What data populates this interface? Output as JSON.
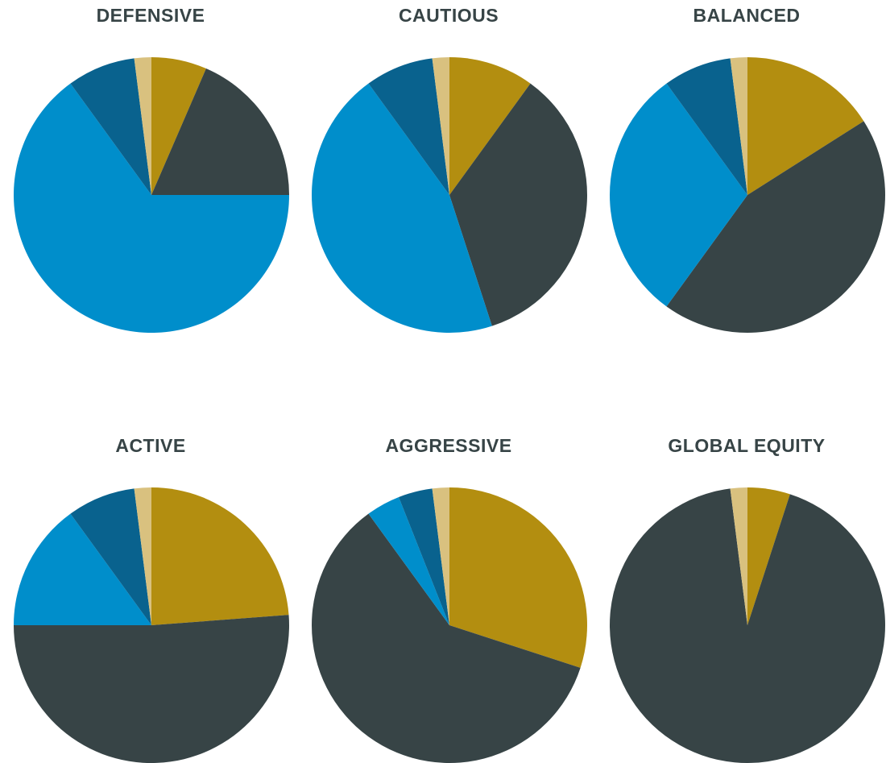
{
  "palette": {
    "gold": "#B38E10",
    "dark": "#374446",
    "blue": "#008ECB",
    "navy": "#09628E",
    "sand": "#D9C17F"
  },
  "chart_data": [
    {
      "type": "pie",
      "title": "DEFENSIVE",
      "slices": [
        {
          "value": 6.5,
          "color": "gold"
        },
        {
          "value": 18.5,
          "color": "dark"
        },
        {
          "value": 65,
          "color": "blue"
        },
        {
          "value": 8,
          "color": "navy"
        },
        {
          "value": 2,
          "color": "sand"
        }
      ]
    },
    {
      "type": "pie",
      "title": "CAUTIOUS",
      "slices": [
        {
          "value": 10,
          "color": "gold"
        },
        {
          "value": 35,
          "color": "dark"
        },
        {
          "value": 45,
          "color": "blue"
        },
        {
          "value": 8,
          "color": "navy"
        },
        {
          "value": 2,
          "color": "sand"
        }
      ]
    },
    {
      "type": "pie",
      "title": "BALANCED",
      "slices": [
        {
          "value": 16,
          "color": "gold"
        },
        {
          "value": 44,
          "color": "dark"
        },
        {
          "value": 30,
          "color": "blue"
        },
        {
          "value": 8,
          "color": "navy"
        },
        {
          "value": 2,
          "color": "sand"
        }
      ]
    },
    {
      "type": "pie",
      "title": "ACTIVE",
      "slices": [
        {
          "value": 23.8,
          "color": "gold"
        },
        {
          "value": 51.2,
          "color": "dark"
        },
        {
          "value": 15,
          "color": "blue"
        },
        {
          "value": 8,
          "color": "navy"
        },
        {
          "value": 2,
          "color": "sand"
        }
      ]
    },
    {
      "type": "pie",
      "title": "AGGRESSIVE",
      "slices": [
        {
          "value": 30,
          "color": "gold"
        },
        {
          "value": 60,
          "color": "dark"
        },
        {
          "value": 4,
          "color": "blue"
        },
        {
          "value": 4,
          "color": "navy"
        },
        {
          "value": 2,
          "color": "sand"
        }
      ]
    },
    {
      "type": "pie",
      "title": "GLOBAL EQUITY",
      "slices": [
        {
          "value": 5,
          "color": "gold"
        },
        {
          "value": 93,
          "color": "dark"
        },
        {
          "value": 0,
          "color": "blue"
        },
        {
          "value": 0,
          "color": "navy"
        },
        {
          "value": 2,
          "color": "sand"
        }
      ]
    }
  ]
}
